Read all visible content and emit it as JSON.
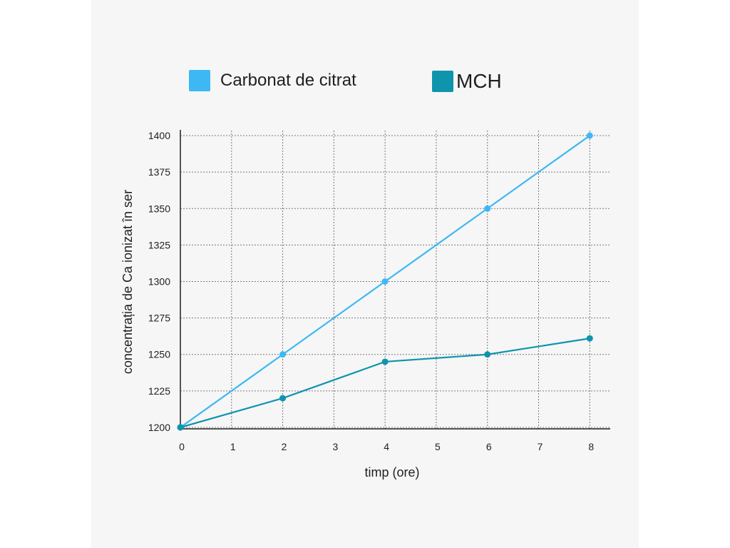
{
  "legend": [
    {
      "label": "Carbonat de citrat",
      "color": "#3db8f5"
    },
    {
      "label": "MCH",
      "color": "#0f94ae"
    }
  ],
  "chart_data": {
    "type": "line",
    "xlabel": "timp (ore)",
    "ylabel": "concentrația de Ca ionizat în ser",
    "x_ticks": [
      0,
      1,
      2,
      3,
      4,
      5,
      6,
      7,
      8
    ],
    "y_ticks": [
      1200,
      1225,
      1250,
      1275,
      1300,
      1325,
      1350,
      1375,
      1400
    ],
    "xlim": [
      0,
      8.4
    ],
    "ylim": [
      1199,
      1401
    ],
    "grid": true,
    "legend_position": "top",
    "series": [
      {
        "name": "Carbonat de citrat",
        "color": "#3db8f5",
        "x": [
          0,
          2,
          4,
          6,
          8
        ],
        "y": [
          1200,
          1250,
          1300,
          1350,
          1400
        ]
      },
      {
        "name": "MCH",
        "color": "#0f94ae",
        "x": [
          0,
          2,
          4,
          6,
          8
        ],
        "y": [
          1200,
          1220,
          1245,
          1250,
          1261
        ]
      }
    ]
  }
}
